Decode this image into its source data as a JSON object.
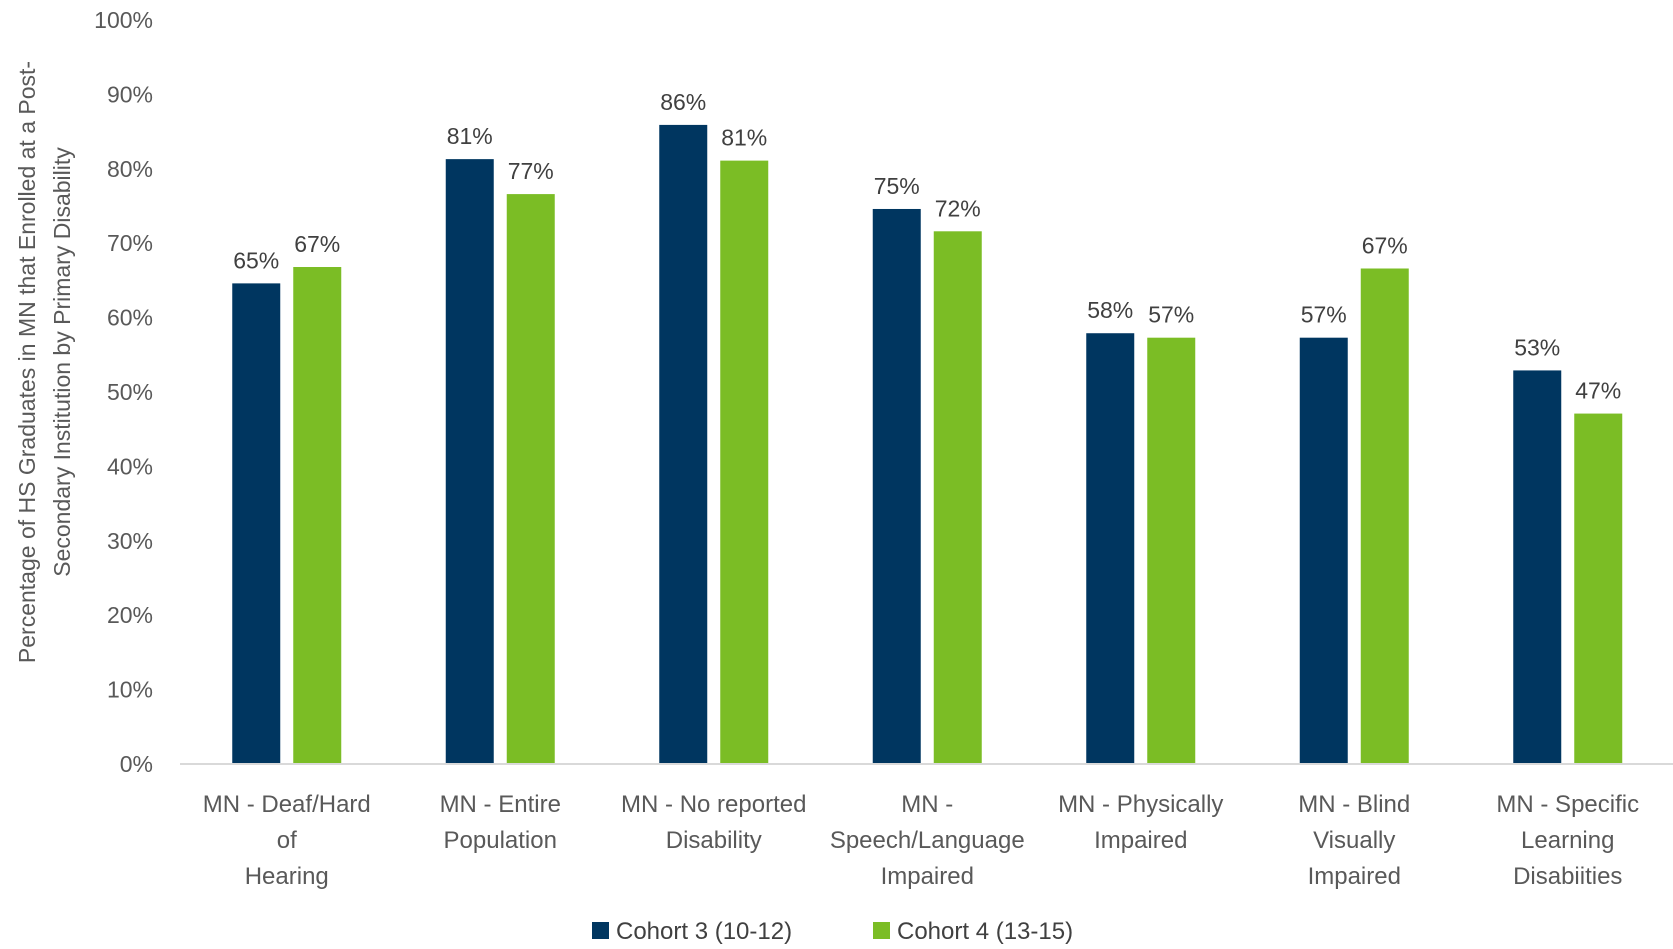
{
  "chart_data": {
    "type": "bar",
    "title": "",
    "ylabel": [
      "Percentage of HS Graduates in MN that Enrolled at a Post-",
      "Secondary Institution by Primary Disability"
    ],
    "xlabel": "",
    "ylim": [
      0,
      100
    ],
    "y_ticks": [
      "0%",
      "10%",
      "20%",
      "30%",
      "40%",
      "50%",
      "60%",
      "70%",
      "80%",
      "90%",
      "100%"
    ],
    "categories": [
      [
        "MN - Deaf/Hard",
        "of",
        "Hearing"
      ],
      [
        "MN - Entire",
        "Population"
      ],
      [
        "MN - No reported",
        "Disability"
      ],
      [
        "MN -",
        "Speech/Language",
        "Impaired"
      ],
      [
        "MN - Physically",
        "Impaired"
      ],
      [
        "MN - Blind",
        "Visually",
        "Impaired"
      ],
      [
        "MN - Specific",
        "Learning",
        "Disabiities"
      ]
    ],
    "series": [
      {
        "name": "Cohort 3 (10-12)",
        "color": "#003660",
        "values": [
          64.6,
          81.3,
          85.9,
          74.6,
          57.9,
          57.3,
          52.9
        ],
        "labels": [
          "65%",
          "81%",
          "86%",
          "75%",
          "58%",
          "57%",
          "53%"
        ]
      },
      {
        "name": "Cohort 4 (13-15)",
        "color": "#7BBD25",
        "values": [
          66.8,
          76.6,
          81.1,
          71.6,
          57.3,
          66.6,
          47.1
        ],
        "labels": [
          "67%",
          "77%",
          "81%",
          "72%",
          "57%",
          "67%",
          "47%"
        ]
      }
    ],
    "grid": false,
    "legend_position": "bottom-center"
  }
}
